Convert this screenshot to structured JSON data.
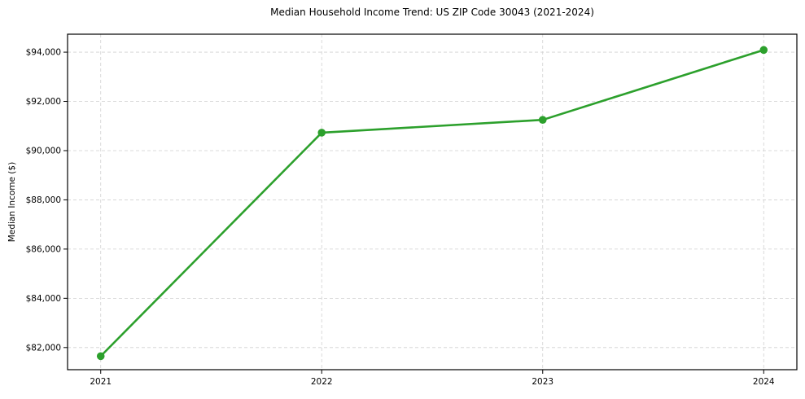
{
  "chart_data": {
    "type": "line",
    "title": "Median Household Income Trend: US ZIP Code 30043 (2021-2024)",
    "xlabel": "",
    "ylabel": "Median Income ($)",
    "x": [
      2021,
      2022,
      2023,
      2024
    ],
    "values": [
      81650,
      90730,
      91250,
      94090
    ],
    "xticks": [
      2021,
      2022,
      2023,
      2024
    ],
    "xtick_labels": [
      "2021",
      "2022",
      "2023",
      "2024"
    ],
    "yticks": [
      82000,
      84000,
      86000,
      88000,
      90000,
      92000,
      94000
    ],
    "ytick_labels": [
      "$82,000",
      "$84,000",
      "$86,000",
      "$88,000",
      "$90,000",
      "$92,000",
      "$94,000"
    ],
    "xlim": [
      2020.85,
      2024.15
    ],
    "ylim": [
      81100,
      94730
    ],
    "grid": true,
    "legend": "none",
    "line_color": "#2ca02c",
    "marker": "circle",
    "grid_color": "#d0d0d0",
    "axis_color": "#000000",
    "background_color": "#ffffff"
  }
}
